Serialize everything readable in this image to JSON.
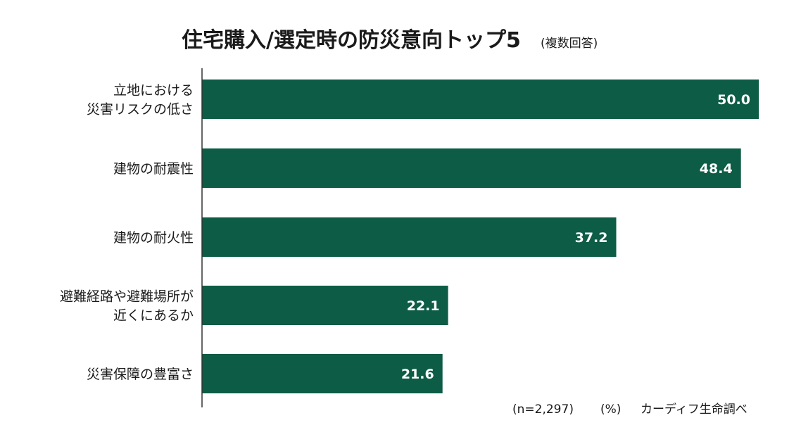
{
  "chart_data": {
    "type": "bar",
    "orientation": "horizontal",
    "title": "住宅購入/選定時の防災意向トップ5",
    "subtitle": "(複数回答)",
    "categories": [
      [
        "立地における",
        "災害リスクの低さ"
      ],
      [
        "建物の耐震性"
      ],
      [
        "建物の耐火性"
      ],
      [
        "避難経路や避難場所が",
        "近くにあるか"
      ],
      [
        "災害保障の豊富さ"
      ]
    ],
    "values": [
      50.0,
      48.4,
      37.2,
      22.1,
      21.6
    ],
    "value_labels": [
      "50.0",
      "48.4",
      "37.2",
      "22.1",
      "21.6"
    ],
    "xlim": [
      0,
      50
    ],
    "grid": false,
    "legend": "none"
  },
  "footer": {
    "sample": "(n=2,297)",
    "unit": "(%)",
    "source": "カーディフ生命調べ"
  },
  "colors": {
    "bar": "#0d5c45",
    "axis": "#333333",
    "background": "#ffffff"
  }
}
